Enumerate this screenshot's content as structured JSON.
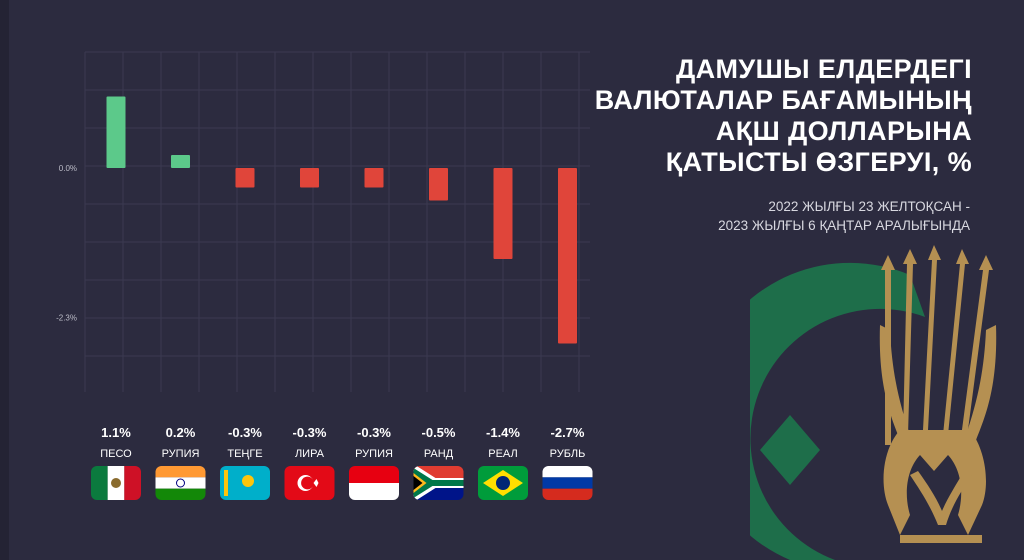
{
  "colors": {
    "background": "#2c2b3f",
    "positive": "#5cc98a",
    "negative": "#e0453a",
    "grid": "#3b3a50",
    "emblem_green": "#1e6e4a",
    "emblem_gold": "#b59052"
  },
  "title_lines": [
    "ДАМУШЫ ЕЛДЕРДЕГІ",
    "ВАЛЮТАЛАР БАҒАМЫНЫҢ",
    "АҚШ ДОЛЛАРЫНА",
    "ҚАТЫСТЫ ӨЗГЕРУІ, %"
  ],
  "subtitle_lines": [
    "2022 ЖЫЛҒЫ 23 ЖЕЛТОҚСАН -",
    "2023 ЖЫЛҒЫ 6 ҚАҢТАР АРАЛЫҒЫНДА"
  ],
  "emblem": {
    "icon": "national-bank-emblem-icon"
  },
  "chart_data": {
    "type": "bar",
    "title": "",
    "xlabel": "",
    "ylabel": "",
    "ylim": [
      -2.8,
      1.3
    ],
    "yticks": [
      0.0,
      -2.3
    ],
    "ytick_labels": [
      "0.0%",
      "-2.3%"
    ],
    "grid": true,
    "legend": "none",
    "categories": [
      "ПЕСО",
      "РУПИЯ",
      "ТЕҢГЕ",
      "ЛИРА",
      "РУПИЯ",
      "РАНД",
      "РЕАЛ",
      "РУБЛЬ"
    ],
    "value_labels": [
      "1.1%",
      "0.2%",
      "-0.3%",
      "-0.3%",
      "-0.3%",
      "-0.5%",
      "-1.4%",
      "-2.7%"
    ],
    "values": [
      1.1,
      0.2,
      -0.3,
      -0.3,
      -0.3,
      -0.5,
      -1.4,
      -2.7
    ],
    "flags": [
      "mexico-flag-icon",
      "india-flag-icon",
      "kazakhstan-flag-icon",
      "turkey-flag-icon",
      "indonesia-flag-icon",
      "south-africa-flag-icon",
      "brazil-flag-icon",
      "russia-flag-icon"
    ]
  }
}
